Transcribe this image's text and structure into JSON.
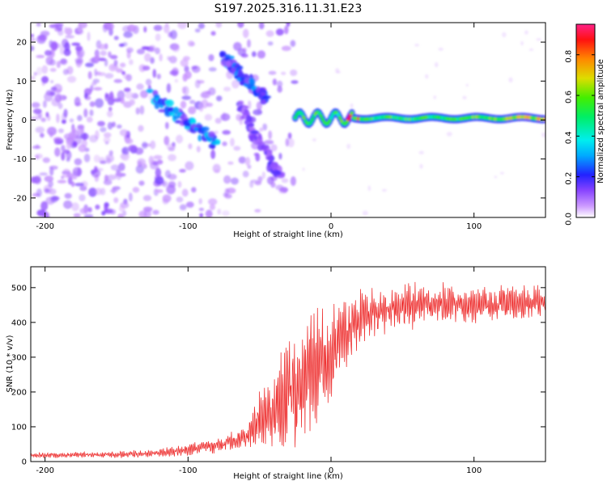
{
  "title": "S197.2025.316.11.31.E23",
  "chart_data": [
    {
      "type": "heatmap",
      "xlabel": "Height of straight line (km)",
      "ylabel": "Frequency (Hz)",
      "xlim": [
        -210,
        150
      ],
      "ylim": [
        -25,
        25
      ],
      "x_ticks": [
        -200,
        -100,
        0,
        100
      ],
      "y_ticks": [
        -20,
        -10,
        0,
        10,
        20
      ],
      "colorbar": {
        "label": "Normalized spectral amplitude",
        "range": [
          0,
          0.95
        ],
        "ticks": [
          0.0,
          0.2,
          0.4,
          0.6,
          0.8
        ]
      },
      "features": [
        {
          "name": "carrier-line",
          "x_range": [
            -25,
            150
          ],
          "frequency": 0.5,
          "amplitude": 0.55
        },
        {
          "name": "diagonal-streak-1",
          "from": [
            -125,
            6
          ],
          "to": [
            -80,
            -6
          ],
          "amplitude": 0.3
        },
        {
          "name": "diagonal-streak-2",
          "from": [
            -75,
            16
          ],
          "to": [
            -45,
            5
          ],
          "amplitude": 0.25
        },
        {
          "name": "diagonal-streak-3",
          "from": [
            -65,
            4
          ],
          "to": [
            -35,
            -15
          ],
          "amplitude": 0.15
        },
        {
          "name": "noise-field",
          "x_range": [
            -210,
            -25
          ],
          "frequency_range": [
            -25,
            25
          ],
          "amplitude": 0.08
        }
      ]
    },
    {
      "type": "line",
      "xlabel": "Height of straight line (km)",
      "ylabel": "SNR (10 * v/v)",
      "xlim": [
        -210,
        150
      ],
      "ylim": [
        0,
        560
      ],
      "x_ticks": [
        -200,
        -100,
        0,
        100
      ],
      "y_ticks": [
        0,
        100,
        200,
        300,
        400,
        500
      ],
      "color": "#ee3333",
      "envelope": {
        "x": [
          -210,
          -150,
          -120,
          -100,
          -80,
          -60,
          -50,
          -40,
          -30,
          -20,
          -10,
          0,
          10,
          20,
          40,
          60,
          80,
          100,
          120,
          150
        ],
        "mean": [
          18,
          20,
          24,
          35,
          45,
          70,
          120,
          150,
          180,
          220,
          260,
          300,
          360,
          410,
          440,
          450,
          455,
          450,
          455,
          460
        ],
        "amp": [
          8,
          10,
          14,
          20,
          25,
          35,
          90,
          130,
          180,
          200,
          190,
          150,
          120,
          90,
          70,
          70,
          65,
          60,
          55,
          55
        ]
      }
    }
  ]
}
